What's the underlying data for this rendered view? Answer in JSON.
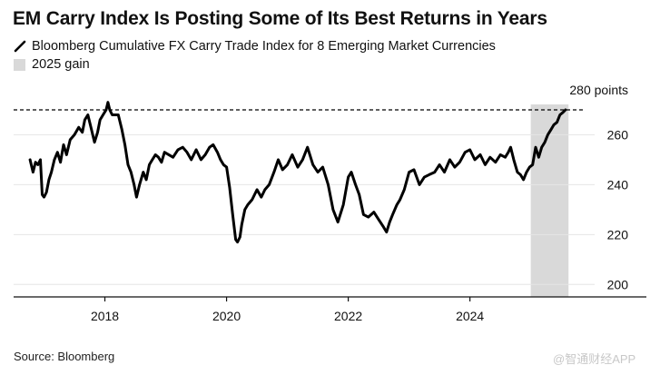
{
  "chart_data": {
    "type": "line",
    "title": "EM Carry Index Is Posting Some of Its Best Returns in Years",
    "series_label": "Bloomberg Cumulative FX Carry Trade Index for 8 Emerging Market Currencies",
    "shade_label": "2025 gain",
    "y_unit_label": "280 points",
    "ylim": [
      195,
      282
    ],
    "yticks": [
      200,
      220,
      240,
      260
    ],
    "xlim": [
      2016.5,
      2026.9
    ],
    "xticks": [
      2018,
      2020,
      2022,
      2024
    ],
    "shaded_region": [
      2025.0,
      2025.62
    ],
    "reference_line": 270,
    "series": [
      {
        "name": "Bloomberg Cumulative FX Carry Trade Index for 8 Emerging Market Currencies",
        "x": [
          2016.77,
          2016.82,
          2016.86,
          2016.9,
          2016.94,
          2016.97,
          2017.0,
          2017.04,
          2017.08,
          2017.12,
          2017.17,
          2017.22,
          2017.27,
          2017.32,
          2017.37,
          2017.43,
          2017.5,
          2017.57,
          2017.63,
          2017.67,
          2017.72,
          2017.78,
          2017.83,
          2017.88,
          2017.92,
          2017.97,
          2018.02,
          2018.05,
          2018.08,
          2018.12,
          2018.17,
          2018.22,
          2018.28,
          2018.33,
          2018.38,
          2018.43,
          2018.48,
          2018.52,
          2018.57,
          2018.63,
          2018.68,
          2018.73,
          2018.78,
          2018.83,
          2018.88,
          2018.93,
          2018.98,
          2019.05,
          2019.12,
          2019.2,
          2019.28,
          2019.35,
          2019.42,
          2019.5,
          2019.58,
          2019.65,
          2019.72,
          2019.78,
          2019.85,
          2019.9,
          2019.95,
          2020.0,
          2020.05,
          2020.1,
          2020.15,
          2020.18,
          2020.22,
          2020.25,
          2020.3,
          2020.35,
          2020.42,
          2020.5,
          2020.57,
          2020.63,
          2020.7,
          2020.78,
          2020.85,
          2020.92,
          2021.0,
          2021.08,
          2021.17,
          2021.25,
          2021.33,
          2021.42,
          2021.5,
          2021.58,
          2021.67,
          2021.75,
          2021.83,
          2021.92,
          2022.0,
          2022.05,
          2022.12,
          2022.18,
          2022.25,
          2022.33,
          2022.42,
          2022.5,
          2022.58,
          2022.63,
          2022.68,
          2022.73,
          2022.8,
          2022.85,
          2022.92,
          2023.0,
          2023.08,
          2023.17,
          2023.25,
          2023.33,
          2023.42,
          2023.5,
          2023.58,
          2023.67,
          2023.75,
          2023.83,
          2023.92,
          2024.0,
          2024.08,
          2024.17,
          2024.25,
          2024.33,
          2024.42,
          2024.5,
          2024.58,
          2024.63,
          2024.67,
          2024.72,
          2024.78,
          2024.83,
          2024.88,
          2024.93,
          2024.98,
          2025.03,
          2025.08,
          2025.13,
          2025.18,
          2025.23,
          2025.28,
          2025.33,
          2025.38,
          2025.43,
          2025.48,
          2025.53,
          2025.57
        ],
        "values": [
          250,
          245,
          249,
          248,
          250,
          236,
          235,
          237,
          242,
          245,
          250,
          253,
          249,
          256,
          252,
          258,
          260,
          263,
          261,
          266,
          268,
          262,
          257,
          261,
          266,
          268,
          270,
          273,
          270,
          268,
          268,
          268,
          262,
          256,
          248,
          245,
          240,
          235,
          240,
          245,
          242,
          248,
          250,
          252,
          251,
          249,
          253,
          252,
          251,
          254,
          255,
          253,
          250,
          254,
          250,
          252,
          255,
          256,
          253,
          250,
          248,
          247,
          239,
          228,
          218,
          217,
          219,
          224,
          230,
          232,
          234,
          238,
          235,
          238,
          240,
          245,
          250,
          246,
          248,
          252,
          247,
          250,
          255,
          248,
          245,
          247,
          240,
          230,
          225,
          232,
          243,
          245,
          240,
          236,
          228,
          227,
          229,
          226,
          223,
          221,
          225,
          228,
          232,
          234,
          238,
          245,
          246,
          240,
          243,
          244,
          245,
          248,
          245,
          250,
          247,
          249,
          253,
          254,
          250,
          252,
          248,
          251,
          249,
          252,
          251,
          253,
          255,
          250,
          245,
          244,
          242,
          245,
          247,
          248,
          255,
          251,
          255,
          257,
          260,
          262,
          264,
          265,
          268,
          269,
          270
        ]
      }
    ]
  },
  "source": "Source: Bloomberg",
  "watermark": "@智通财经APP",
  "colors": {
    "line": "#000000",
    "shade": "#d9d9d9",
    "axis": "#111111",
    "refline": "#000000"
  }
}
